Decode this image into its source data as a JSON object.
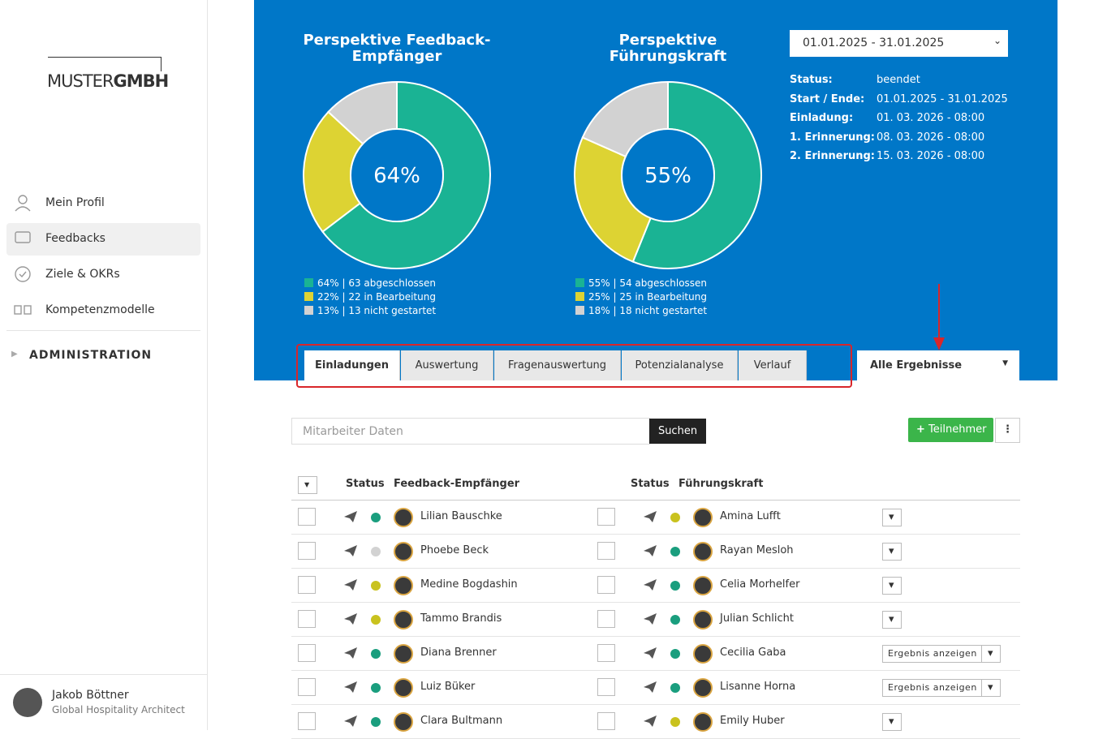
{
  "sidebar": {
    "logo": {
      "left": "MUSTER",
      "right": "GMBH"
    },
    "nav": [
      "Mein Profil",
      "Feedbacks",
      "Ziele & OKRs",
      "Kompetenzmodelle"
    ],
    "admin": "ADMINISTRATION",
    "user": {
      "name": "Jakob Böttner",
      "role": "Global Hospitality Architect"
    }
  },
  "charts": [
    {
      "type": "donut",
      "title": [
        "Perspektive Feedback-",
        "Empfänger"
      ],
      "center_label": "64%",
      "values": [
        64,
        22,
        13
      ],
      "colors": [
        "#1ab394",
        "#ddd333",
        "#d2d2d2"
      ],
      "legend": [
        "64% | 63 abgeschlossen",
        "22% | 22 in Bearbeitung",
        "13% | 13 nicht gestartet"
      ]
    },
    {
      "type": "donut",
      "title": [
        "Perspektive",
        "Führungskraft"
      ],
      "center_label": "55%",
      "values": [
        55,
        25,
        18
      ],
      "colors": [
        "#1ab394",
        "#ddd333",
        "#d2d2d2"
      ],
      "legend": [
        "55% | 54 abgeschlossen",
        "25% | 25 in Bearbeitung",
        "18% | 18 nicht gestartet"
      ]
    }
  ],
  "period_select": "01.01.2025 - 31.01.2025",
  "info": [
    [
      "Status:",
      "beendet"
    ],
    [
      "Start / Ende:",
      "01.01.2025 - 31.01.2025"
    ],
    [
      "Einladung:",
      "01. 03. 2026 - 08:00"
    ],
    [
      "1. Erinnerung:",
      "08. 03. 2026 - 08:00"
    ],
    [
      "2. Erinnerung:",
      "15. 03. 2026 - 08:00"
    ]
  ],
  "tabs": [
    "Einladungen",
    "Auswertung",
    "Fragenauswertung",
    "Potenzialanalyse",
    "Verlauf"
  ],
  "results_select": "Alle Ergebnisse",
  "search": {
    "placeholder": "Mitarbeiter Daten",
    "button": "Suchen"
  },
  "add_button": "Teilnehmer",
  "table": {
    "headers": [
      "Status",
      "Feedback-Empfänger",
      "Status",
      "Führungskraft"
    ],
    "rows": [
      {
        "recipient": "Lilian Bauschke",
        "recipient_status": "#1a9e7e",
        "manager": "Amina Lufft",
        "manager_status": "#c9c21e",
        "action": null
      },
      {
        "recipient": "Phoebe Beck",
        "recipient_status": "#d2d2d2",
        "manager": "Rayan Mesloh",
        "manager_status": "#1a9e7e",
        "action": null
      },
      {
        "recipient": "Medine Bogdashin",
        "recipient_status": "#c9c21e",
        "manager": "Celia Morhelfer",
        "manager_status": "#1a9e7e",
        "action": null
      },
      {
        "recipient": "Tammo Brandis",
        "recipient_status": "#c9c21e",
        "manager": "Julian Schlicht",
        "manager_status": "#1a9e7e",
        "action": null
      },
      {
        "recipient": "Diana Brenner",
        "recipient_status": "#1a9e7e",
        "manager": "Cecilia Gaba",
        "manager_status": "#1a9e7e",
        "action": "Ergebnis anzeigen"
      },
      {
        "recipient": "Luiz Büker",
        "recipient_status": "#1a9e7e",
        "manager": "Lisanne Horna",
        "manager_status": "#1a9e7e",
        "action": "Ergebnis anzeigen"
      },
      {
        "recipient": "Clara Bultmann",
        "recipient_status": "#1a9e7e",
        "manager": "Emily Huber",
        "manager_status": "#c9c21e",
        "action": null
      }
    ]
  }
}
